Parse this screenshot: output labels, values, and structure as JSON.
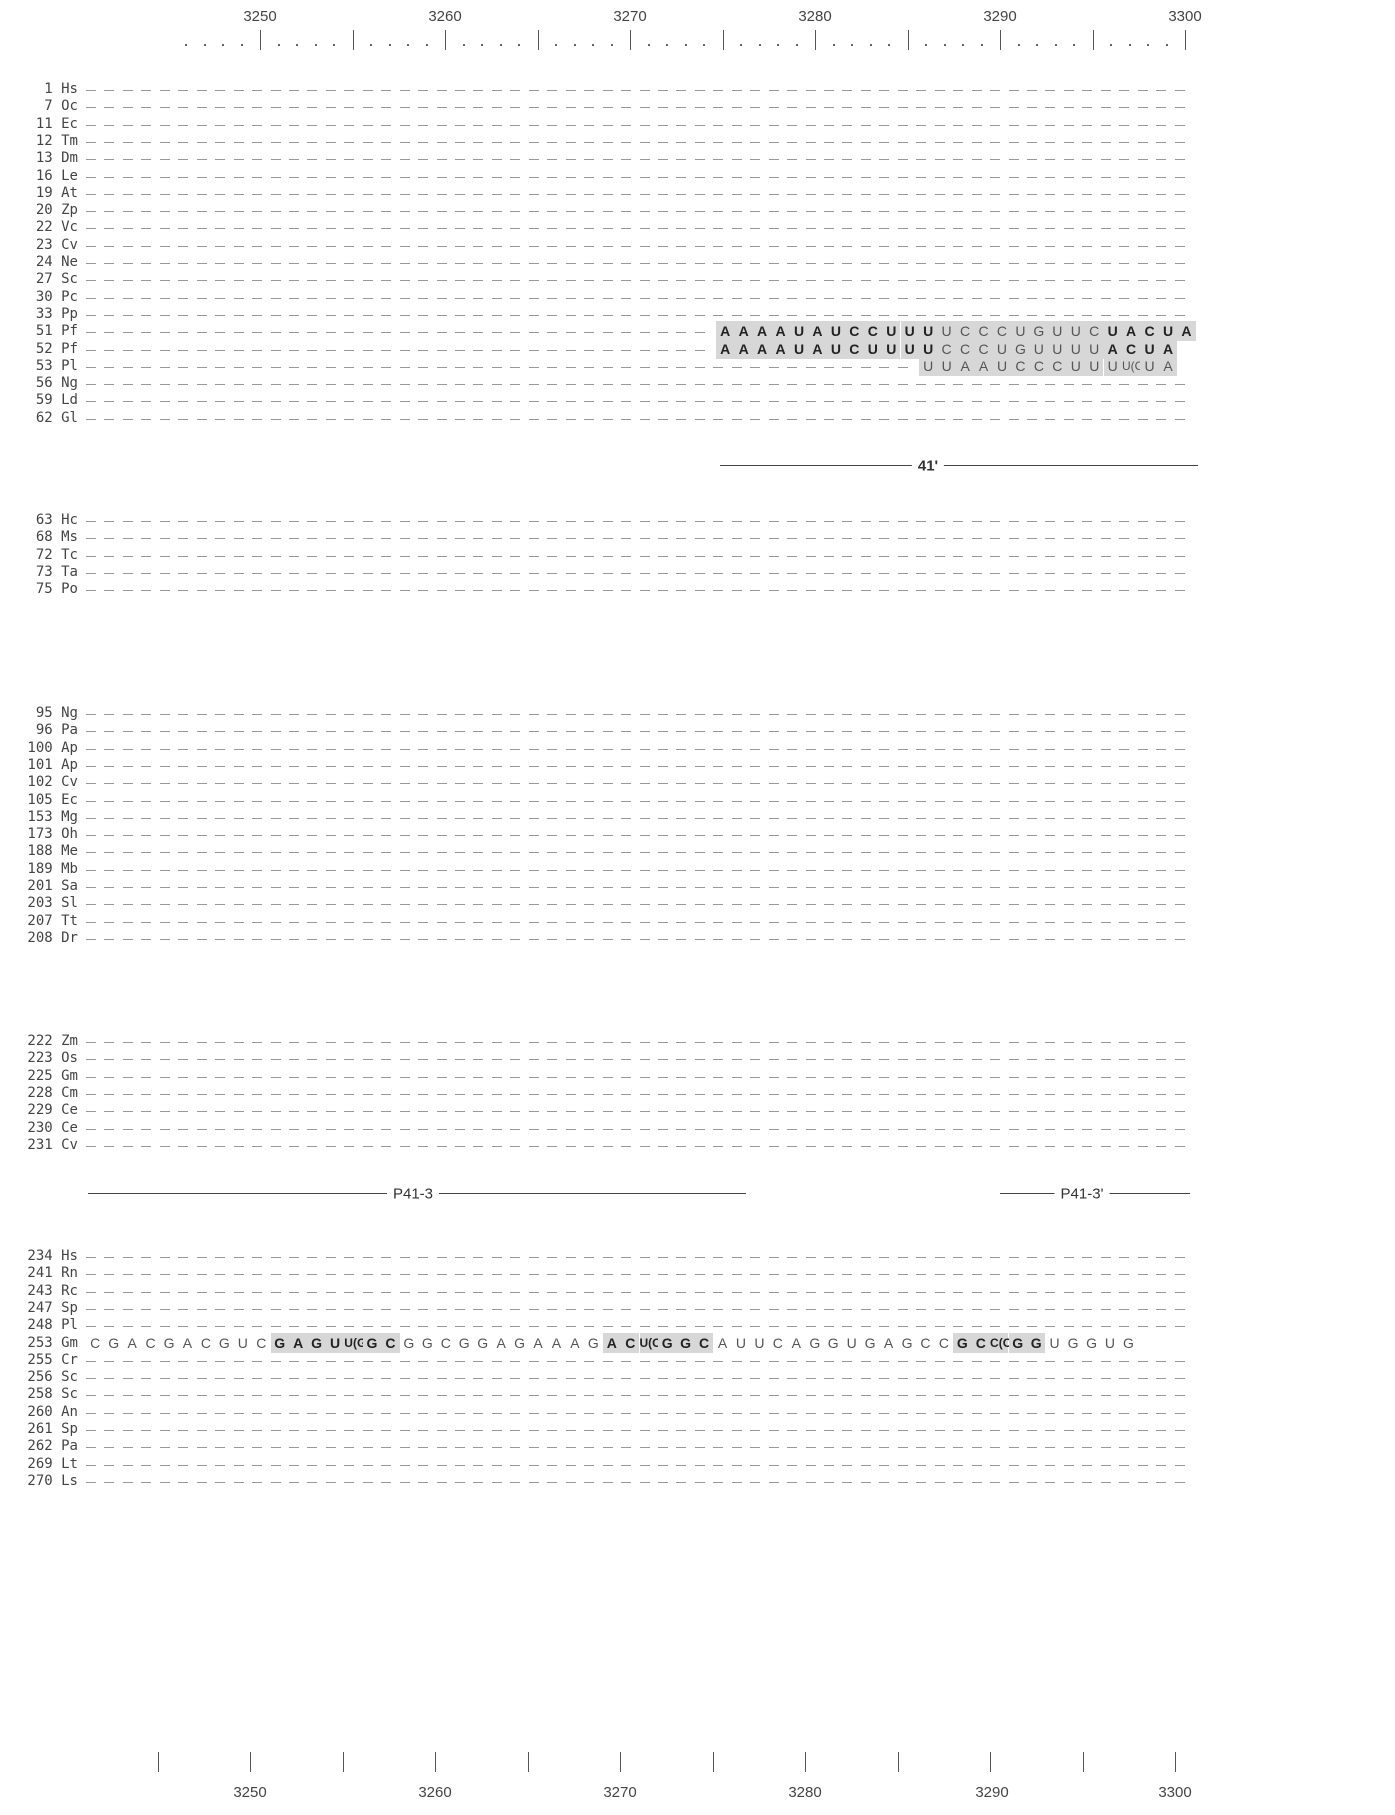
{
  "ruler": {
    "top_labels": [
      "3250",
      "3260",
      "3270",
      "3280",
      "3290",
      "3300"
    ],
    "bottom_labels": [
      "3250",
      "3260",
      "3270",
      "3280",
      "3290",
      "3300"
    ]
  },
  "blocks": [
    {
      "rows": [
        {
          "num": "1",
          "sp": "Hs"
        },
        {
          "num": "7",
          "sp": "Oc"
        },
        {
          "num": "11",
          "sp": "Ec"
        },
        {
          "num": "12",
          "sp": "Tm"
        },
        {
          "num": "13",
          "sp": "Dm"
        },
        {
          "num": "16",
          "sp": "Le"
        },
        {
          "num": "19",
          "sp": "At"
        },
        {
          "num": "20",
          "sp": "Zp"
        },
        {
          "num": "22",
          "sp": "Vc"
        },
        {
          "num": "23",
          "sp": "Cv"
        },
        {
          "num": "24",
          "sp": "Ne"
        },
        {
          "num": "27",
          "sp": "Sc"
        },
        {
          "num": "30",
          "sp": "Pc"
        },
        {
          "num": "33",
          "sp": "Pp"
        },
        {
          "num": "51",
          "sp": "Pf",
          "seq": [
            [
              "A",
              1,
              1
            ],
            [
              "A",
              1,
              1
            ],
            [
              "A",
              1,
              1
            ],
            [
              "A",
              1,
              1
            ],
            [
              "U",
              1,
              1
            ],
            [
              "A",
              1,
              1
            ],
            [
              "U",
              1,
              1
            ],
            [
              "C",
              1,
              1
            ],
            [
              "C",
              1,
              1
            ],
            [
              "U",
              1,
              1
            ],
            [
              "U",
              1,
              1
            ],
            [
              "U",
              1,
              1
            ],
            [
              "U",
              0,
              1
            ],
            [
              "C",
              0,
              1
            ],
            [
              "C",
              0,
              1
            ],
            [
              "C",
              0,
              1
            ],
            [
              "U",
              0,
              1
            ],
            [
              "G",
              0,
              1
            ],
            [
              "U",
              0,
              1
            ],
            [
              "U",
              0,
              1
            ],
            [
              "C",
              0,
              1
            ],
            [
              "U",
              1,
              1
            ],
            [
              "A",
              1,
              1
            ],
            [
              "C",
              1,
              1
            ],
            [
              "U",
              1,
              1
            ],
            [
              "A",
              1,
              1
            ]
          ]
        },
        {
          "num": "52",
          "sp": "Pf",
          "seq": [
            [
              "A",
              1,
              1
            ],
            [
              "A",
              1,
              1
            ],
            [
              "A",
              1,
              1
            ],
            [
              "A",
              1,
              1
            ],
            [
              "U",
              1,
              1
            ],
            [
              "A",
              1,
              1
            ],
            [
              "U",
              1,
              1
            ],
            [
              "C",
              1,
              1
            ],
            [
              "U",
              1,
              1
            ],
            [
              "U",
              1,
              1
            ],
            [
              "U",
              1,
              1
            ],
            [
              "U",
              1,
              1
            ],
            [
              "C",
              0,
              1
            ],
            [
              "C",
              0,
              1
            ],
            [
              "C",
              0,
              1
            ],
            [
              "U",
              0,
              1
            ],
            [
              "G",
              0,
              1
            ],
            [
              "U",
              0,
              1
            ],
            [
              "U",
              0,
              1
            ],
            [
              "U",
              0,
              1
            ],
            [
              "U",
              0,
              1
            ],
            [
              "A",
              1,
              1
            ],
            [
              "C",
              1,
              1
            ],
            [
              "U",
              1,
              1
            ],
            [
              "A",
              1,
              1
            ]
          ]
        },
        {
          "num": "53",
          "sp": "Pl",
          "seq": [
            [
              "U",
              0,
              1
            ],
            [
              "U",
              0,
              1
            ],
            [
              "A",
              0,
              1
            ],
            [
              "A",
              0,
              1
            ],
            [
              "U",
              0,
              1
            ],
            [
              "C",
              0,
              1
            ],
            [
              "C",
              0,
              1
            ],
            [
              "C",
              0,
              1
            ],
            [
              "U",
              0,
              1
            ],
            [
              "U",
              0,
              1
            ],
            [
              "U",
              0,
              1
            ],
            [
              "U(C)",
              0,
              1
            ],
            [
              "U",
              0,
              1
            ],
            [
              "A",
              0,
              1
            ]
          ]
        },
        {
          "num": "56",
          "sp": "Ng"
        },
        {
          "num": "59",
          "sp": "Ld"
        },
        {
          "num": "62",
          "sp": "Gl"
        }
      ]
    },
    {
      "rows": [
        {
          "num": "63",
          "sp": "Hc"
        },
        {
          "num": "68",
          "sp": "Ms"
        },
        {
          "num": "72",
          "sp": "Tc"
        },
        {
          "num": "73",
          "sp": "Ta"
        },
        {
          "num": "75",
          "sp": "Po"
        }
      ]
    },
    {
      "rows": [
        {
          "num": "95",
          "sp": "Ng"
        },
        {
          "num": "96",
          "sp": "Pa"
        },
        {
          "num": "100",
          "sp": "Ap"
        },
        {
          "num": "101",
          "sp": "Ap"
        },
        {
          "num": "102",
          "sp": "Cv"
        },
        {
          "num": "105",
          "sp": "Ec"
        },
        {
          "num": "153",
          "sp": "Mg"
        },
        {
          "num": "173",
          "sp": "Oh"
        },
        {
          "num": "188",
          "sp": "Me"
        },
        {
          "num": "189",
          "sp": "Mb"
        },
        {
          "num": "201",
          "sp": "Sa"
        },
        {
          "num": "203",
          "sp": "Sl"
        },
        {
          "num": "207",
          "sp": "Tt"
        },
        {
          "num": "208",
          "sp": "Dr"
        }
      ]
    },
    {
      "rows": [
        {
          "num": "222",
          "sp": "Zm"
        },
        {
          "num": "223",
          "sp": "Os"
        },
        {
          "num": "225",
          "sp": "Gm"
        },
        {
          "num": "228",
          "sp": "Cm"
        },
        {
          "num": "229",
          "sp": "Ce"
        },
        {
          "num": "230",
          "sp": "Ce"
        },
        {
          "num": "231",
          "sp": "Cv"
        }
      ]
    },
    {
      "rows": [
        {
          "num": "234",
          "sp": "Hs"
        },
        {
          "num": "241",
          "sp": "Rn"
        },
        {
          "num": "243",
          "sp": "Rc"
        },
        {
          "num": "247",
          "sp": "Sp"
        },
        {
          "num": "248",
          "sp": "Pl"
        },
        {
          "num": "253",
          "sp": "Gm",
          "seq": [
            [
              "C",
              0,
              0
            ],
            [
              "G",
              0,
              0
            ],
            [
              "A",
              0,
              0
            ],
            [
              "C",
              0,
              0
            ],
            [
              "G",
              0,
              0
            ],
            [
              "A",
              0,
              0
            ],
            [
              "C",
              0,
              0
            ],
            [
              "G",
              0,
              0
            ],
            [
              "U",
              0,
              0
            ],
            [
              "C",
              0,
              0
            ],
            [
              "G",
              1,
              1
            ],
            [
              "A",
              1,
              1
            ],
            [
              "G",
              1,
              1
            ],
            [
              "U",
              1,
              1
            ],
            [
              "U(G)",
              1,
              1
            ],
            [
              "G",
              1,
              1
            ],
            [
              "C",
              1,
              1
            ],
            [
              "G",
              0,
              0
            ],
            [
              "G",
              0,
              0
            ],
            [
              "C",
              0,
              0
            ],
            [
              "G",
              0,
              0
            ],
            [
              "G",
              0,
              0
            ],
            [
              "A",
              0,
              0
            ],
            [
              "G",
              0,
              0
            ],
            [
              "A",
              0,
              0
            ],
            [
              "A",
              0,
              0
            ],
            [
              "A",
              0,
              0
            ],
            [
              "G",
              0,
              0
            ],
            [
              "A",
              1,
              1
            ],
            [
              "C",
              1,
              1
            ],
            [
              "U(C)",
              1,
              1
            ],
            [
              "G",
              1,
              1
            ],
            [
              "G",
              1,
              1
            ],
            [
              "C",
              1,
              1
            ],
            [
              "A",
              0,
              0
            ],
            [
              "U",
              0,
              0
            ],
            [
              "U",
              0,
              0
            ],
            [
              "C",
              0,
              0
            ],
            [
              "A",
              0,
              0
            ],
            [
              "G",
              0,
              0
            ],
            [
              "G",
              0,
              0
            ],
            [
              "U",
              0,
              0
            ],
            [
              "G",
              0,
              0
            ],
            [
              "A",
              0,
              0
            ],
            [
              "G",
              0,
              0
            ],
            [
              "C",
              0,
              0
            ],
            [
              "C",
              0,
              0
            ],
            [
              "G",
              1,
              1
            ],
            [
              "C",
              1,
              1
            ],
            [
              "C(C)",
              1,
              1
            ],
            [
              "G",
              1,
              1
            ],
            [
              "G",
              1,
              1
            ],
            [
              "U",
              0,
              0
            ],
            [
              "G",
              0,
              0
            ],
            [
              "G",
              0,
              0
            ],
            [
              "U",
              0,
              0
            ],
            [
              "G",
              0,
              0
            ]
          ]
        },
        {
          "num": "255",
          "sp": "Cr"
        },
        {
          "num": "256",
          "sp": "Sc"
        },
        {
          "num": "258",
          "sp": "Sc"
        },
        {
          "num": "260",
          "sp": "An"
        },
        {
          "num": "261",
          "sp": "Sp"
        },
        {
          "num": "262",
          "sp": "Pa"
        },
        {
          "num": "269",
          "sp": "Lt"
        },
        {
          "num": "270",
          "sp": "Ls"
        }
      ]
    }
  ],
  "annotations": {
    "a41": "41'",
    "p41_3": "P41-3",
    "p41_3p": "P41-3'"
  }
}
